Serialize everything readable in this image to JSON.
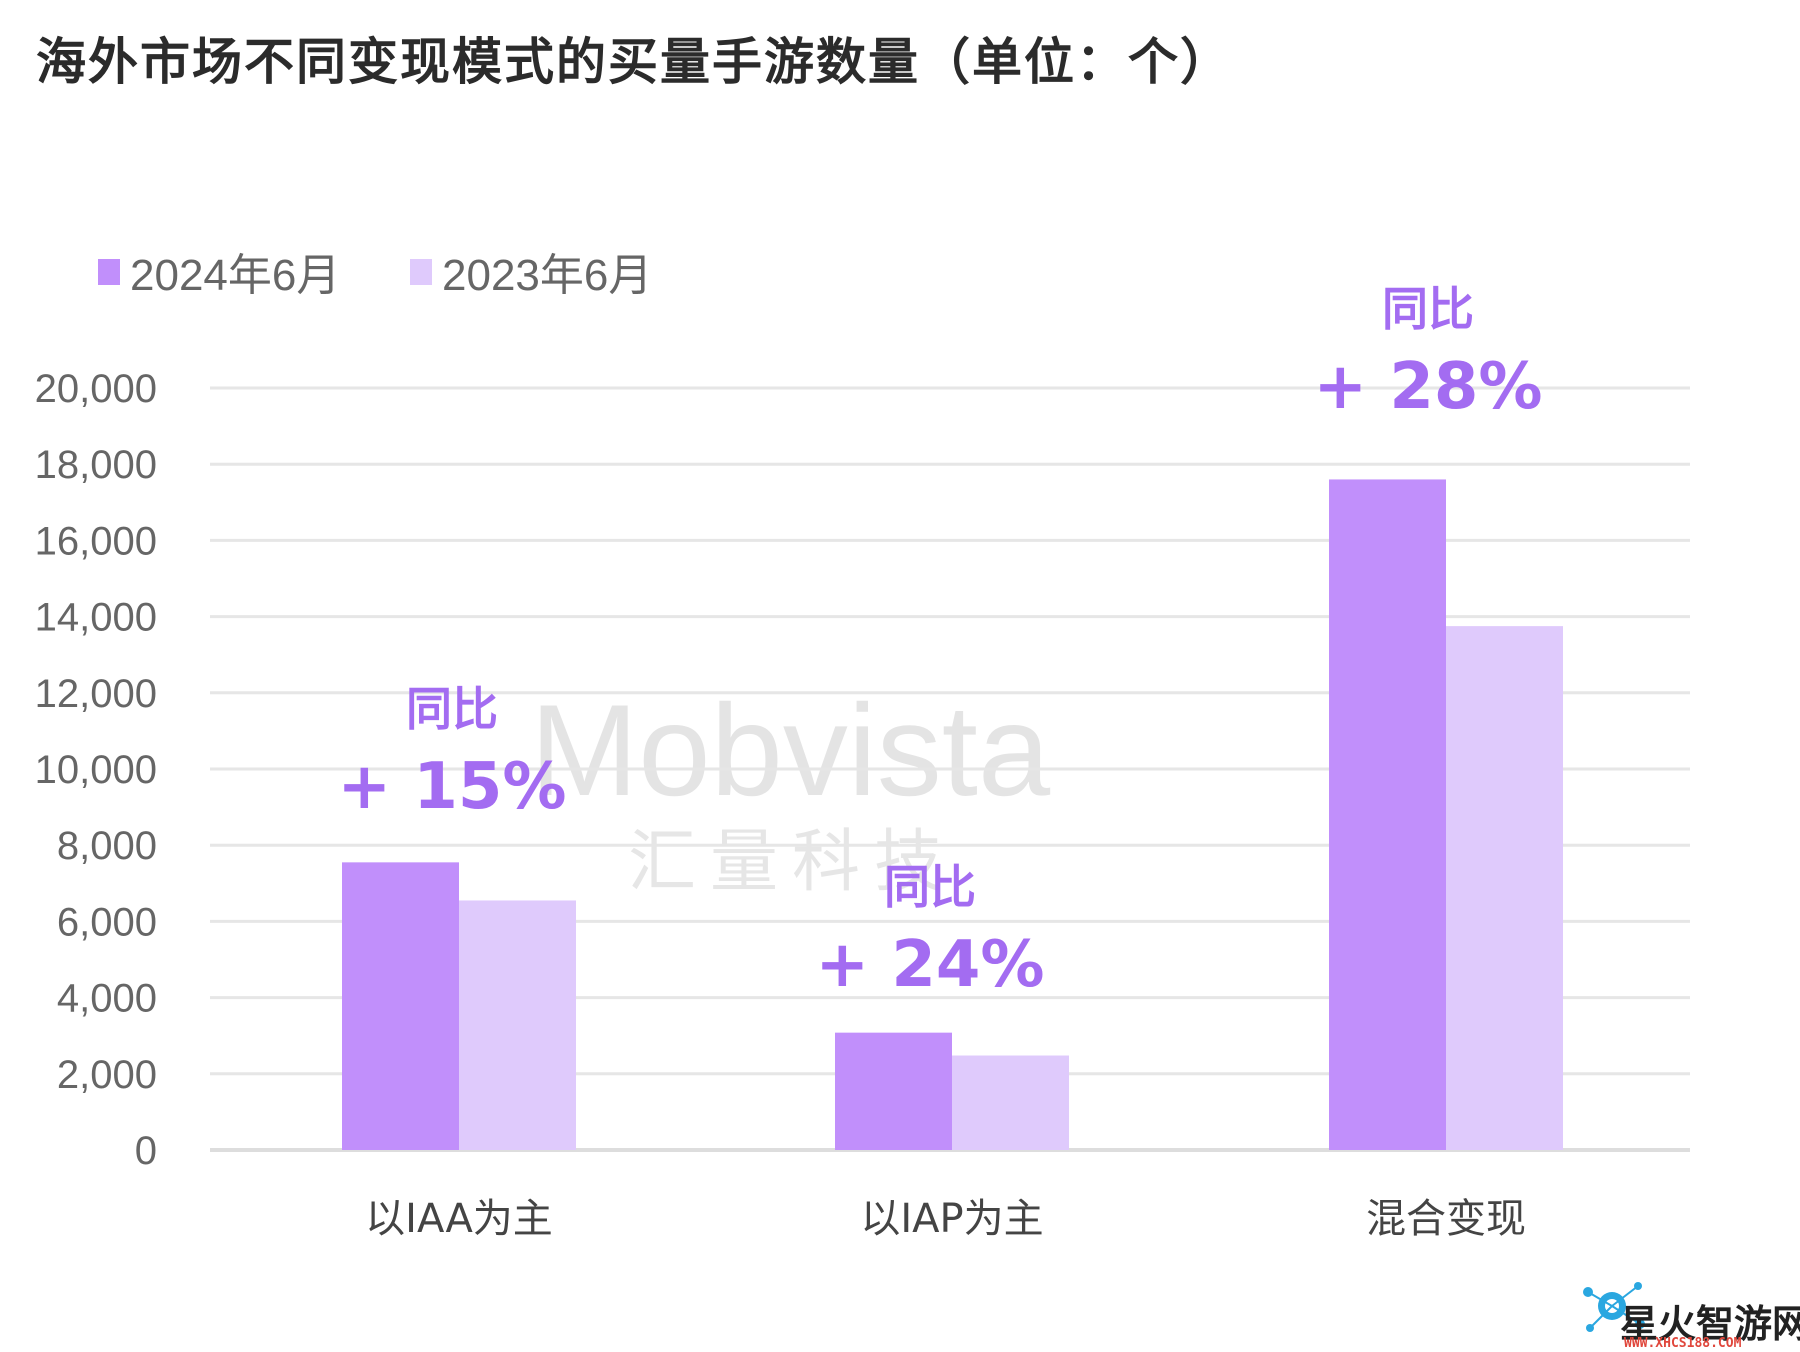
{
  "title": "海外市场不同变现模式的买量手游数量（单位：个）",
  "watermark": {
    "brand": "Mobvista",
    "sub": "汇量科技"
  },
  "corner_logo": {
    "name": "星火智游网",
    "url": "WWW.XHCS188.COM",
    "icon": "molecule-logo-icon"
  },
  "colors": {
    "series_2024": "#c18ffb",
    "series_2023": "#dfcafc",
    "accent": "#a36cf1",
    "grid": "#e6e6e6"
  },
  "chart_data": {
    "type": "bar",
    "title": "海外市场不同变现模式的买量手游数量（单位：个）",
    "categories": [
      "以IAA为主",
      "以IAP为主",
      "混合变现"
    ],
    "series": [
      {
        "name": "2024年6月",
        "values": [
          7550,
          3080,
          17600
        ]
      },
      {
        "name": "2023年6月",
        "values": [
          6550,
          2480,
          13750
        ]
      }
    ],
    "ylim": [
      0,
      20000
    ],
    "yticks": [
      "0",
      "2,000",
      "4,000",
      "6,000",
      "8,000",
      "10,000",
      "12,000",
      "14,000",
      "16,000",
      "18,000",
      "20,000"
    ],
    "grid": true,
    "legend": "top-left",
    "annotations": [
      {
        "label": "同比",
        "value": "+ 15%",
        "category": 0
      },
      {
        "label": "同比",
        "value": "+ 24%",
        "category": 1
      },
      {
        "label": "同比",
        "value": "+ 28%",
        "category": 2
      }
    ]
  }
}
